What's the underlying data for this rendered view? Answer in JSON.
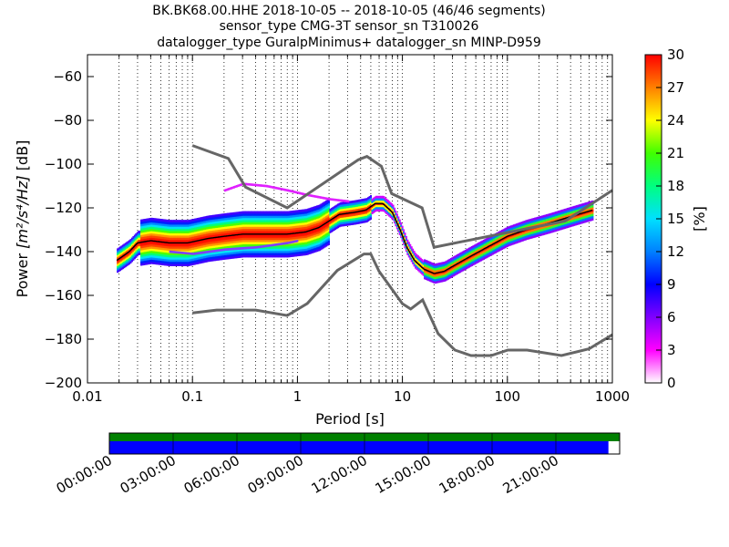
{
  "header": {
    "lines": [
      "BK.BK68.00.HHE   2018-10-05 -- 2018-10-05  (46/46 segments)",
      "sensor_type CMG-3T sensor_sn T310026",
      "datalogger_type GuralpMinimus+ datalogger_sn MINP-D959"
    ]
  },
  "chart_data": {
    "type": "heatmap",
    "title": "BK.BK68.00.HHE   2018-10-05 -- 2018-10-05  (46/46 segments)",
    "xlabel": "Period [s]",
    "ylabel": "Power [m²/s⁴/Hz] [dB]",
    "ylabel_prefix": "Power ",
    "ylabel_math": "[m²/s⁴/Hz]",
    "ylabel_suffix": " [dB]",
    "x_scale": "log",
    "xlim": [
      0.01,
      1000
    ],
    "ylim": [
      -200,
      -50
    ],
    "x_ticks": [
      0.01,
      0.1,
      1,
      10,
      100,
      1000
    ],
    "x_tick_labels": [
      "0.01",
      "0.1",
      "1",
      "10",
      "100",
      "1000"
    ],
    "y_ticks": [
      -200,
      -180,
      -160,
      -140,
      -120,
      -100,
      -80,
      -60
    ],
    "y_tick_labels": [
      "−200",
      "−180",
      "−160",
      "−140",
      "−120",
      "−100",
      "−80",
      "−60"
    ],
    "grid": "dotted vertical",
    "noise_models": {
      "high": [
        [
          0.1,
          -91.5
        ],
        [
          0.22,
          -97.4
        ],
        [
          0.32,
          -110.5
        ],
        [
          0.8,
          -120
        ],
        [
          3.8,
          -98
        ],
        [
          4.6,
          -96.5
        ],
        [
          6.3,
          -101
        ],
        [
          7.9,
          -113.5
        ],
        [
          15.4,
          -120
        ],
        [
          20,
          -138
        ],
        [
          354.8,
          -126
        ],
        [
          1000,
          -112
        ]
      ],
      "low": [
        [
          0.1,
          -168
        ],
        [
          0.17,
          -166.7
        ],
        [
          0.4,
          -166.7
        ],
        [
          0.8,
          -169.2
        ],
        [
          1.24,
          -163.7
        ],
        [
          2.4,
          -148.6
        ],
        [
          4.3,
          -141.1
        ],
        [
          5,
          -141.1
        ],
        [
          6,
          -149
        ],
        [
          10,
          -163.8
        ],
        [
          12,
          -166.2
        ],
        [
          15.6,
          -162.1
        ],
        [
          21.9,
          -177.5
        ],
        [
          31.6,
          -185
        ],
        [
          45,
          -187.5
        ],
        [
          70,
          -187.5
        ],
        [
          101,
          -185
        ],
        [
          154,
          -185
        ],
        [
          328,
          -187.5
        ],
        [
          600,
          -184.4
        ],
        [
          1000,
          -178
        ]
      ]
    },
    "psd_mode": [
      [
        0.019,
        -144
      ],
      [
        0.025,
        -140
      ],
      [
        0.03,
        -136
      ],
      [
        0.04,
        -135
      ],
      [
        0.06,
        -136
      ],
      [
        0.09,
        -136
      ],
      [
        0.14,
        -134
      ],
      [
        0.2,
        -133
      ],
      [
        0.3,
        -132
      ],
      [
        0.5,
        -132
      ],
      [
        0.8,
        -132
      ],
      [
        1.2,
        -131
      ],
      [
        1.6,
        -129
      ],
      [
        2.0,
        -126
      ],
      [
        2.5,
        -123
      ],
      [
        3.5,
        -122
      ],
      [
        4.5,
        -121
      ],
      [
        5.5,
        -118
      ],
      [
        6.5,
        -118
      ],
      [
        8.0,
        -122
      ],
      [
        9.5,
        -130
      ],
      [
        11,
        -138
      ],
      [
        13,
        -144
      ],
      [
        16,
        -148
      ],
      [
        20,
        -150
      ],
      [
        25,
        -149
      ],
      [
        32,
        -146
      ],
      [
        45,
        -142
      ],
      [
        70,
        -137
      ],
      [
        100,
        -133
      ],
      [
        150,
        -130
      ],
      [
        250,
        -127
      ],
      [
        400,
        -124
      ],
      [
        650,
        -121
      ]
    ],
    "psd_upper_outliers": [
      [
        0.2,
        -112
      ],
      [
        0.3,
        -109
      ],
      [
        0.5,
        -110
      ],
      [
        0.8,
        -112
      ],
      [
        1.2,
        -114
      ],
      [
        2.0,
        -116
      ],
      [
        3.0,
        -117
      ]
    ],
    "psd_lower_outliers": [
      [
        0.06,
        -140
      ],
      [
        0.1,
        -141
      ],
      [
        0.2,
        -139
      ],
      [
        0.4,
        -138
      ],
      [
        0.8,
        -136
      ],
      [
        1.0,
        -135
      ]
    ],
    "colorbar": {
      "label": "[%]",
      "min": 0,
      "max": 30,
      "ticks": [
        0,
        3,
        6,
        9,
        12,
        15,
        18,
        21,
        24,
        27,
        30
      ],
      "tick_labels": [
        "0",
        "3",
        "6",
        "9",
        "12",
        "15",
        "18",
        "21",
        "24",
        "27",
        "30"
      ],
      "colors": [
        "#ffffff",
        "#ff00ff",
        "#8000ff",
        "#0000ff",
        "#0080ff",
        "#00e0ff",
        "#00ff80",
        "#40ff00",
        "#ffff00",
        "#ff8000",
        "#ff0000"
      ]
    },
    "timeline": {
      "start_fraction": 0,
      "data_end_fraction": 0.978,
      "gap_end_fraction": 1.0,
      "data_color": "#0000ff",
      "coverage_color": "#008000",
      "ticks": [
        "00:00:00",
        "03:00:00",
        "06:00:00",
        "09:00:00",
        "12:00:00",
        "15:00:00",
        "18:00:00",
        "21:00:00"
      ]
    }
  }
}
